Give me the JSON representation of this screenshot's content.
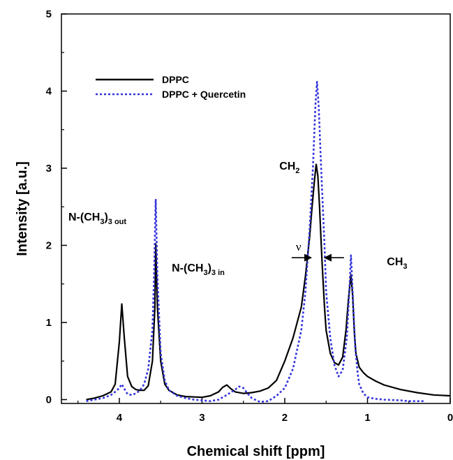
{
  "chart_data": {
    "type": "line",
    "title": "",
    "xlabel": "Chemical shift [ppm]",
    "ylabel": "Intensity [a.u.]",
    "xlim": [
      4.7,
      0
    ],
    "ylim": [
      -0.05,
      5
    ],
    "x_reversed": true,
    "grid": false,
    "legend_position": "top-left",
    "x_ticks": [
      4,
      3,
      2,
      1,
      0
    ],
    "x_tick_labels": [
      "4",
      "3",
      "2",
      "1",
      "0"
    ],
    "y_ticks": [
      0,
      1,
      2,
      3,
      4,
      5
    ],
    "y_tick_labels": [
      "0",
      "1",
      "2",
      "3",
      "4",
      "5"
    ],
    "series": [
      {
        "name": "DPPC",
        "color": "#000000",
        "style": "solid",
        "x": [
          4.4,
          4.3,
          4.2,
          4.1,
          4.05,
          4.0,
          3.97,
          3.94,
          3.9,
          3.85,
          3.8,
          3.75,
          3.7,
          3.65,
          3.6,
          3.57,
          3.56,
          3.54,
          3.5,
          3.45,
          3.4,
          3.3,
          3.2,
          3.0,
          2.9,
          2.8,
          2.75,
          2.7,
          2.65,
          2.6,
          2.5,
          2.4,
          2.3,
          2.2,
          2.1,
          2.0,
          1.9,
          1.8,
          1.75,
          1.7,
          1.67,
          1.64,
          1.62,
          1.6,
          1.58,
          1.55,
          1.52,
          1.5,
          1.45,
          1.4,
          1.35,
          1.3,
          1.26,
          1.23,
          1.2,
          1.18,
          1.16,
          1.14,
          1.1,
          1.05,
          1.0,
          0.9,
          0.8,
          0.6,
          0.4,
          0.2,
          0.0
        ],
        "y": [
          0.0,
          0.02,
          0.05,
          0.1,
          0.2,
          0.75,
          1.24,
          0.8,
          0.3,
          0.17,
          0.13,
          0.12,
          0.12,
          0.18,
          0.5,
          1.2,
          2.02,
          1.2,
          0.5,
          0.2,
          0.12,
          0.06,
          0.04,
          0.03,
          0.05,
          0.1,
          0.16,
          0.19,
          0.14,
          0.1,
          0.08,
          0.09,
          0.11,
          0.15,
          0.25,
          0.5,
          0.8,
          1.2,
          1.6,
          2.1,
          2.5,
          2.85,
          3.05,
          2.9,
          2.5,
          1.8,
          1.2,
          0.9,
          0.6,
          0.48,
          0.45,
          0.55,
          0.9,
          1.3,
          1.62,
          1.35,
          0.9,
          0.6,
          0.42,
          0.35,
          0.3,
          0.24,
          0.19,
          0.13,
          0.09,
          0.06,
          0.05
        ]
      },
      {
        "name": "DPPC + Quercetin",
        "color": "#3333dd",
        "style": "dotted",
        "x": [
          4.4,
          4.3,
          4.2,
          4.1,
          4.05,
          4.0,
          3.97,
          3.94,
          3.9,
          3.85,
          3.8,
          3.75,
          3.7,
          3.65,
          3.6,
          3.58,
          3.56,
          3.54,
          3.5,
          3.45,
          3.4,
          3.3,
          3.2,
          3.1,
          3.0,
          2.9,
          2.8,
          2.7,
          2.6,
          2.55,
          2.5,
          2.45,
          2.4,
          2.3,
          2.2,
          2.1,
          2.0,
          1.9,
          1.8,
          1.75,
          1.7,
          1.66,
          1.63,
          1.61,
          1.59,
          1.56,
          1.52,
          1.5,
          1.45,
          1.4,
          1.35,
          1.3,
          1.25,
          1.22,
          1.2,
          1.18,
          1.15,
          1.12,
          1.1,
          1.05,
          1.0,
          0.9,
          0.8,
          0.6,
          0.5,
          0.4,
          0.3
        ],
        "y": [
          -0.02,
          0.0,
          0.02,
          0.06,
          0.1,
          0.15,
          0.2,
          0.14,
          0.07,
          0.06,
          0.08,
          0.12,
          0.2,
          0.4,
          0.9,
          1.6,
          2.6,
          1.6,
          0.6,
          0.25,
          0.12,
          0.05,
          0.02,
          0.0,
          -0.01,
          -0.02,
          0.0,
          0.06,
          0.13,
          0.17,
          0.15,
          0.08,
          0.02,
          -0.03,
          -0.02,
          0.05,
          0.15,
          0.4,
          0.9,
          1.4,
          2.2,
          3.0,
          3.8,
          4.12,
          3.8,
          3.0,
          2.0,
          1.4,
          0.8,
          0.45,
          0.3,
          0.38,
          0.8,
          1.4,
          1.87,
          1.4,
          0.7,
          0.35,
          0.2,
          0.08,
          0.03,
          0.01,
          0.0,
          -0.01,
          -0.02,
          -0.02,
          -0.02
        ]
      }
    ],
    "annotations": [
      {
        "id": "nme3-out",
        "main": "N-(CH",
        "sub": "3",
        "mid": ")",
        "sub2": "3 out",
        "x": 4.7,
        "y": 2.32
      },
      {
        "id": "nme3-in",
        "main": "N-(CH",
        "sub": "3",
        "mid": ")",
        "sub2": "3 in",
        "x": 3.45,
        "y": 1.66
      },
      {
        "id": "ch2",
        "main": "CH",
        "sub": "2",
        "mid": "",
        "sub2": "",
        "x": 2.15,
        "y": 2.98
      },
      {
        "id": "ch3",
        "main": "CH",
        "sub": "3",
        "mid": "",
        "sub2": "",
        "x": 0.85,
        "y": 1.74
      }
    ],
    "linewidth_marker": {
      "label": "ν",
      "x_left": 1.68,
      "x_right": 1.52,
      "y": 1.84
    }
  }
}
